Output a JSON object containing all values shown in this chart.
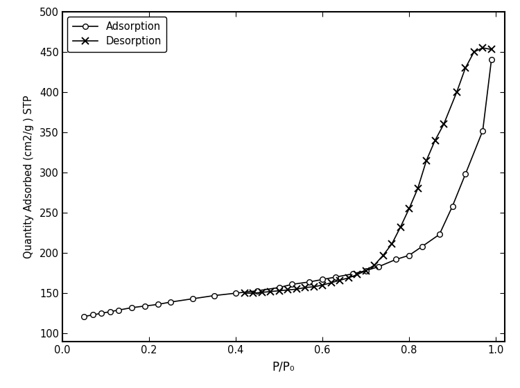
{
  "adsorption_x": [
    0.05,
    0.07,
    0.09,
    0.11,
    0.13,
    0.16,
    0.19,
    0.22,
    0.25,
    0.3,
    0.35,
    0.4,
    0.45,
    0.5,
    0.53,
    0.57,
    0.6,
    0.63,
    0.67,
    0.7,
    0.73,
    0.77,
    0.8,
    0.83,
    0.87,
    0.9,
    0.93,
    0.97,
    0.99
  ],
  "adsorption_y": [
    121,
    123,
    125,
    127,
    129,
    132,
    134,
    136,
    139,
    143,
    147,
    150,
    153,
    157,
    161,
    164,
    167,
    170,
    174,
    178,
    183,
    192,
    197,
    208,
    223,
    258,
    298,
    352,
    440
  ],
  "desorption_x": [
    0.99,
    0.97,
    0.95,
    0.93,
    0.91,
    0.88,
    0.86,
    0.84,
    0.82,
    0.8,
    0.78,
    0.76,
    0.74,
    0.72,
    0.7,
    0.68,
    0.66,
    0.64,
    0.62,
    0.6,
    0.58,
    0.56,
    0.54,
    0.52,
    0.5,
    0.48,
    0.46,
    0.44,
    0.42
  ],
  "desorption_y": [
    453,
    455,
    450,
    430,
    400,
    360,
    340,
    315,
    280,
    255,
    232,
    211,
    197,
    185,
    178,
    173,
    169,
    166,
    163,
    160,
    158,
    157,
    155,
    154,
    153,
    152,
    151,
    150,
    150
  ],
  "xlabel": "P/P₀",
  "ylabel": "Quantity Adsorbed (cm2/g ) STP",
  "xlim": [
    0.0,
    1.02
  ],
  "ylim": [
    90,
    500
  ],
  "yticks": [
    100,
    150,
    200,
    250,
    300,
    350,
    400,
    450,
    500
  ],
  "xticks": [
    0.0,
    0.2,
    0.4,
    0.6,
    0.8,
    1.0
  ],
  "legend_labels": [
    "Adsorption",
    "Desorption"
  ],
  "line_color": "#000000",
  "bg_color": "#ffffff"
}
